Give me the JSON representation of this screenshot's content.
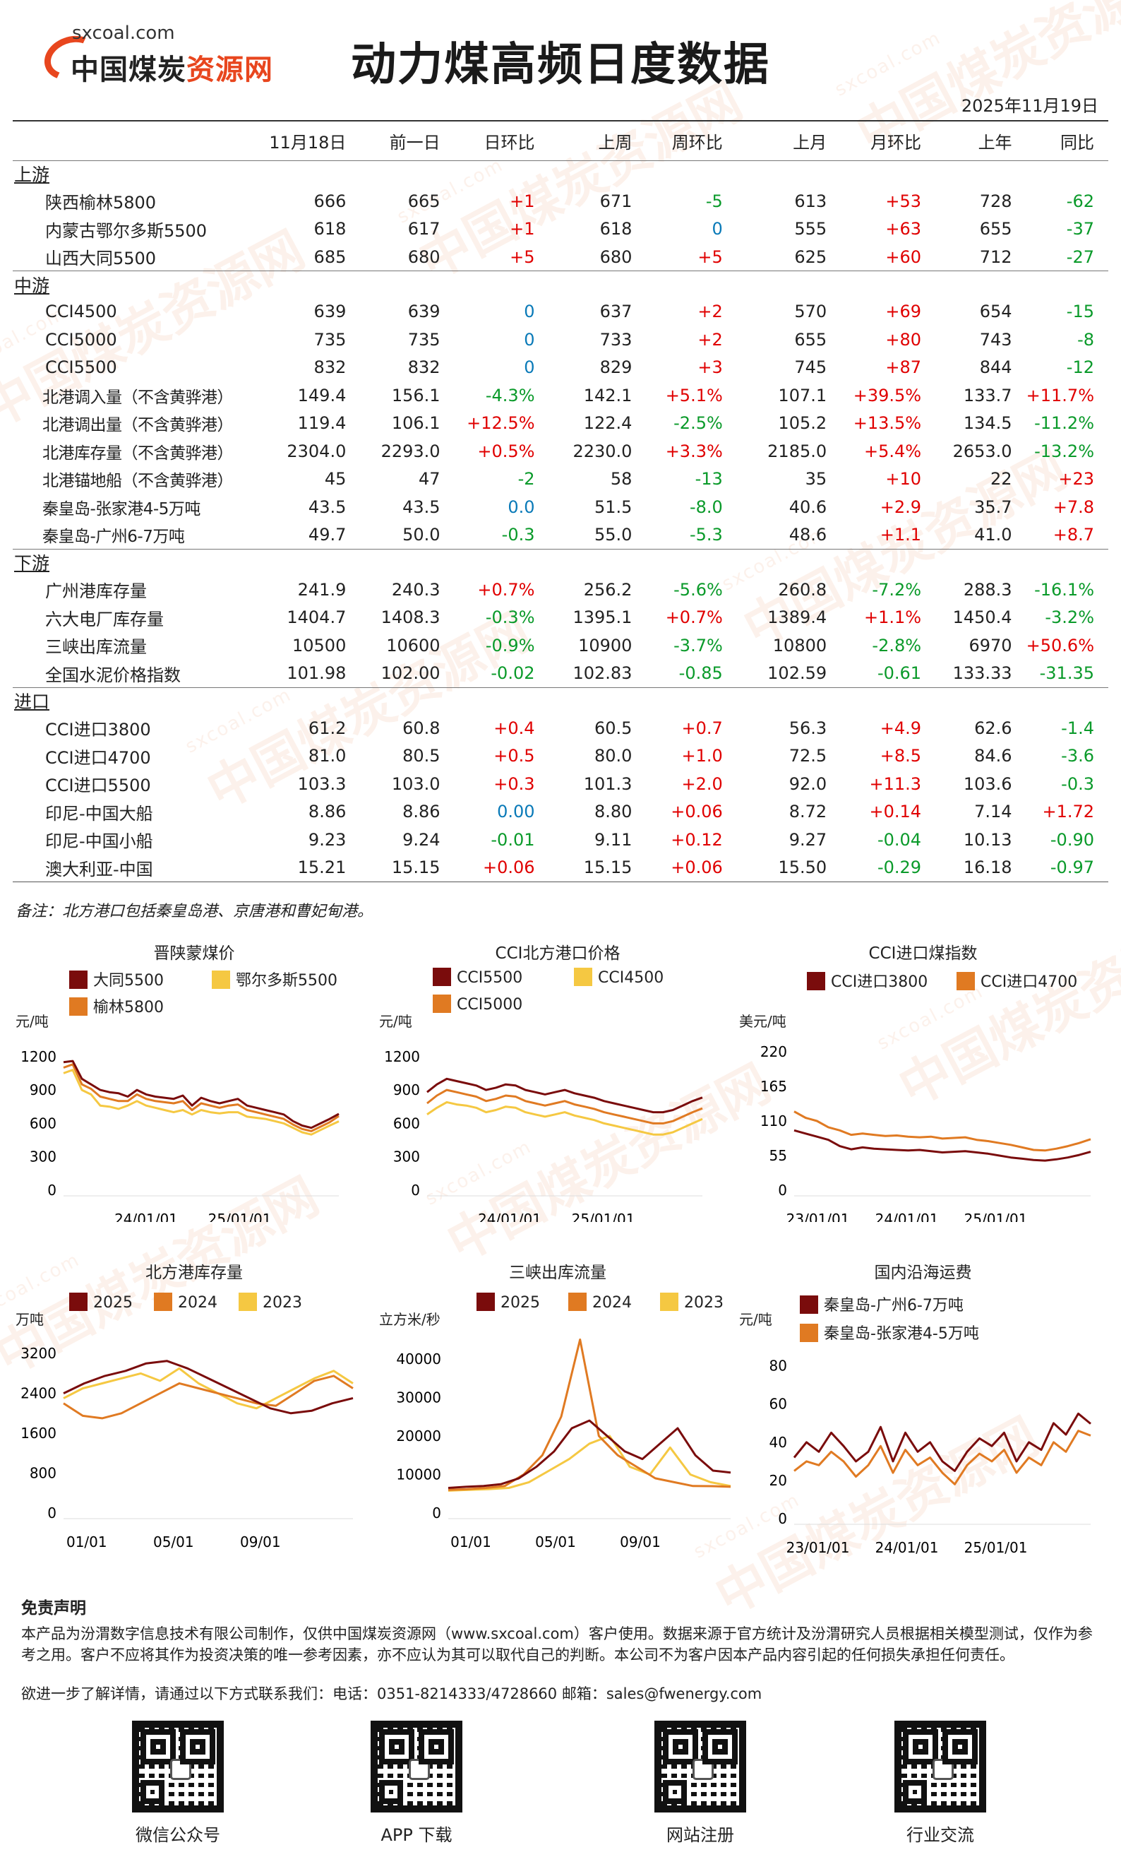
{
  "logo": {
    "domain": "sxcoal.com",
    "name_a": "中国煤炭",
    "name_b": "资源网"
  },
  "watermark": {
    "text": "中国煤炭资源网",
    "small": "sxcoal.com"
  },
  "title": "动力煤高频日度数据",
  "date": "2025年11月19日",
  "table": {
    "headers": [
      "",
      "11月18日",
      "前一日",
      "日环比",
      "上周",
      "周环比",
      "上月",
      "月环比",
      "上年",
      "同比"
    ],
    "sections": [
      {
        "name": "上游",
        "rows": [
          [
            "陕西榆林5800",
            "666",
            "665",
            "+1",
            "671",
            "-5",
            "613",
            "+53",
            "728",
            "-62"
          ],
          [
            "内蒙古鄂尔多斯5500",
            "618",
            "617",
            "+1",
            "618",
            "0",
            "555",
            "+63",
            "655",
            "-37"
          ],
          [
            "山西大同5500",
            "685",
            "680",
            "+5",
            "680",
            "+5",
            "625",
            "+60",
            "712",
            "-27"
          ]
        ]
      },
      {
        "name": "中游",
        "rows": [
          [
            "CCI4500",
            "639",
            "639",
            "0",
            "637",
            "+2",
            "570",
            "+69",
            "654",
            "-15"
          ],
          [
            "CCI5000",
            "735",
            "735",
            "0",
            "733",
            "+2",
            "655",
            "+80",
            "743",
            "-8"
          ],
          [
            "CCI5500",
            "832",
            "832",
            "0",
            "829",
            "+3",
            "745",
            "+87",
            "844",
            "-12"
          ],
          [
            "北港调入量（不含黄骅港）",
            "149.4",
            "156.1",
            "-4.3%",
            "142.1",
            "+5.1%",
            "107.1",
            "+39.5%",
            "133.7",
            "+11.7%"
          ],
          [
            "北港调出量（不含黄骅港）",
            "119.4",
            "106.1",
            "+12.5%",
            "122.4",
            "-2.5%",
            "105.2",
            "+13.5%",
            "134.5",
            "-11.2%"
          ],
          [
            "北港库存量（不含黄骅港）",
            "2304.0",
            "2293.0",
            "+0.5%",
            "2230.0",
            "+3.3%",
            "2185.0",
            "+5.4%",
            "2653.0",
            "-13.2%"
          ],
          [
            "北港锚地船（不含黄骅港）",
            "45",
            "47",
            "-2",
            "58",
            "-13",
            "35",
            "+10",
            "22",
            "+23"
          ],
          [
            "秦皇岛-张家港4-5万吨",
            "43.5",
            "43.5",
            "0.0",
            "51.5",
            "-8.0",
            "40.6",
            "+2.9",
            "35.7",
            "+7.8"
          ],
          [
            "秦皇岛-广州6-7万吨",
            "49.7",
            "50.0",
            "-0.3",
            "55.0",
            "-5.3",
            "48.6",
            "+1.1",
            "41.0",
            "+8.7"
          ]
        ]
      },
      {
        "name": "下游",
        "rows": [
          [
            "广州港库存量",
            "241.9",
            "240.3",
            "+0.7%",
            "256.2",
            "-5.6%",
            "260.8",
            "-7.2%",
            "288.3",
            "-16.1%"
          ],
          [
            "六大电厂库存量",
            "1404.7",
            "1408.3",
            "-0.3%",
            "1395.1",
            "+0.7%",
            "1389.4",
            "+1.1%",
            "1450.4",
            "-3.2%"
          ],
          [
            "三峡出库流量",
            "10500",
            "10600",
            "-0.9%",
            "10900",
            "-3.7%",
            "10800",
            "-2.8%",
            "6970",
            "+50.6%"
          ],
          [
            "全国水泥价格指数",
            "101.98",
            "102.00",
            "-0.02",
            "102.83",
            "-0.85",
            "102.59",
            "-0.61",
            "133.33",
            "-31.35"
          ]
        ]
      },
      {
        "name": "进口",
        "rows": [
          [
            "CCI进口3800",
            "61.2",
            "60.8",
            "+0.4",
            "60.5",
            "+0.7",
            "56.3",
            "+4.9",
            "62.6",
            "-1.4"
          ],
          [
            "CCI进口4700",
            "81.0",
            "80.5",
            "+0.5",
            "80.0",
            "+1.0",
            "72.5",
            "+8.5",
            "84.6",
            "-3.6"
          ],
          [
            "CCI进口5500",
            "103.3",
            "103.0",
            "+0.3",
            "101.3",
            "+2.0",
            "92.0",
            "+11.3",
            "103.6",
            "-0.3"
          ],
          [
            "印尼-中国大船",
            "8.86",
            "8.86",
            "0.00",
            "8.80",
            "+0.06",
            "8.72",
            "+0.14",
            "7.14",
            "+1.72"
          ],
          [
            "印尼-中国小船",
            "9.23",
            "9.24",
            "-0.01",
            "9.11",
            "+0.12",
            "9.27",
            "-0.04",
            "10.13",
            "-0.90"
          ],
          [
            "澳大利亚-中国",
            "15.21",
            "15.15",
            "+0.06",
            "15.15",
            "+0.06",
            "15.50",
            "-0.29",
            "16.18",
            "-0.97"
          ]
        ]
      }
    ]
  },
  "note": "备注：北方港口包括秦皇岛港、京唐港和曹妃甸港。",
  "colors": {
    "dark": "#7a0c0c",
    "orange": "#e07a22",
    "yellow": "#f5c842"
  },
  "chart_data": [
    {
      "id": "c1",
      "type": "line",
      "title": "晋陕蒙煤价",
      "ylabel": "元/吨",
      "yticks": [
        0,
        300,
        600,
        900,
        1200
      ],
      "ylim": [
        0,
        1300
      ],
      "xticks": [
        "24/01/01",
        "25/01/01"
      ],
      "legend": [
        "大同5500",
        "鄂尔多斯5500",
        "榆林5800"
      ],
      "series": [
        {
          "name": "大同5500",
          "color": "dark",
          "values": [
            1150,
            1160,
            1000,
            950,
            900,
            880,
            870,
            840,
            900,
            860,
            840,
            830,
            820,
            850,
            760,
            830,
            800,
            780,
            800,
            820,
            760,
            740,
            720,
            700,
            680,
            620,
            580,
            560,
            600,
            640,
            685
          ]
        },
        {
          "name": "鄂尔多斯5500",
          "color": "yellow",
          "values": [
            1050,
            1080,
            900,
            860,
            760,
            750,
            730,
            760,
            800,
            760,
            740,
            720,
            700,
            720,
            680,
            720,
            700,
            690,
            700,
            700,
            660,
            650,
            640,
            620,
            600,
            560,
            520,
            500,
            540,
            580,
            618
          ]
        },
        {
          "name": "榆林5800",
          "color": "orange",
          "values": [
            1100,
            1130,
            950,
            910,
            840,
            820,
            800,
            800,
            860,
            820,
            800,
            790,
            780,
            800,
            720,
            780,
            760,
            740,
            760,
            770,
            720,
            700,
            680,
            660,
            640,
            590,
            550,
            530,
            570,
            610,
            666
          ]
        }
      ]
    },
    {
      "id": "c2",
      "type": "line",
      "title": "CCI北方港口价格",
      "ylabel": "元/吨",
      "yticks": [
        0,
        300,
        600,
        900,
        1200
      ],
      "ylim": [
        0,
        1300
      ],
      "xticks": [
        "24/01/01",
        "25/01/01"
      ],
      "legend": [
        "CCI5500",
        "CCI4500",
        "CCI5000"
      ],
      "series": [
        {
          "name": "CCI5500",
          "color": "dark",
          "values": [
            880,
            950,
            1000,
            980,
            960,
            940,
            900,
            920,
            950,
            940,
            900,
            880,
            860,
            880,
            900,
            870,
            850,
            830,
            800,
            780,
            760,
            740,
            720,
            700,
            700,
            720,
            760,
            800,
            832
          ]
        },
        {
          "name": "CCI4500",
          "color": "yellow",
          "values": [
            680,
            740,
            790,
            770,
            760,
            740,
            700,
            720,
            750,
            740,
            700,
            680,
            660,
            680,
            700,
            670,
            650,
            630,
            600,
            580,
            560,
            540,
            520,
            500,
            500,
            520,
            560,
            600,
            639
          ]
        },
        {
          "name": "CCI5000",
          "color": "orange",
          "values": [
            780,
            850,
            900,
            880,
            860,
            840,
            800,
            820,
            850,
            840,
            800,
            780,
            760,
            780,
            800,
            770,
            750,
            730,
            700,
            680,
            660,
            640,
            620,
            600,
            600,
            620,
            660,
            700,
            735
          ]
        }
      ]
    },
    {
      "id": "c3",
      "type": "line",
      "title": "CCI进口煤指数",
      "ylabel": "美元/吨",
      "yticks": [
        0,
        55,
        110,
        165,
        220
      ],
      "ylim": [
        0,
        230
      ],
      "xticks": [
        "23/01/01",
        "24/01/01",
        "25/01/01"
      ],
      "legend": [
        "CCI进口3800",
        "CCI进口4700"
      ],
      "series": [
        {
          "name": "CCI进口3800",
          "color": "dark",
          "values": [
            95,
            90,
            85,
            80,
            70,
            65,
            68,
            66,
            65,
            64,
            63,
            64,
            62,
            60,
            61,
            62,
            60,
            58,
            55,
            52,
            50,
            48,
            47,
            49,
            52,
            56,
            61
          ]
        },
        {
          "name": "CCI进口4700",
          "color": "orange",
          "values": [
            125,
            115,
            110,
            100,
            95,
            88,
            90,
            88,
            86,
            87,
            85,
            84,
            85,
            82,
            83,
            84,
            80,
            78,
            75,
            72,
            68,
            64,
            63,
            66,
            70,
            75,
            81
          ]
        }
      ]
    },
    {
      "id": "c4",
      "type": "line",
      "title": "北方港库存量",
      "ylabel": "万吨",
      "yticks": [
        0,
        800,
        1600,
        2400,
        3200
      ],
      "ylim": [
        0,
        3400
      ],
      "xticks": [
        "01/01",
        "05/01",
        "09/01"
      ],
      "legend": [
        "2025",
        "2024",
        "2023"
      ],
      "series": [
        {
          "name": "2025",
          "color": "dark",
          "values": [
            2400,
            2600,
            2750,
            2850,
            3000,
            3050,
            2900,
            2700,
            2500,
            2300,
            2100,
            2000,
            2050,
            2200,
            2304
          ]
        },
        {
          "name": "2024",
          "color": "orange",
          "values": [
            2200,
            1950,
            1900,
            2000,
            2200,
            2400,
            2600,
            2500,
            2400,
            2300,
            2200,
            2150,
            2400,
            2650,
            2750,
            2500
          ]
        },
        {
          "name": "2023",
          "color": "yellow",
          "values": [
            2300,
            2500,
            2600,
            2700,
            2800,
            2650,
            2900,
            2600,
            2400,
            2200,
            2100,
            2300,
            2500,
            2700,
            2850,
            2600
          ]
        }
      ]
    },
    {
      "id": "c5",
      "type": "line",
      "title": "三峡出库流量",
      "ylabel": "立方米/秒",
      "yticks": [
        0,
        10000,
        20000,
        30000,
        40000
      ],
      "ylim": [
        0,
        44000
      ],
      "xticks": [
        "01/01",
        "05/01",
        "09/01"
      ],
      "legend": [
        "2025",
        "2024",
        "2023"
      ],
      "series": [
        {
          "name": "2025",
          "color": "dark",
          "values": [
            6500,
            6800,
            7000,
            7500,
            9000,
            12000,
            16000,
            22000,
            24000,
            20000,
            16000,
            14000,
            18000,
            22000,
            15000,
            11000,
            10500
          ]
        },
        {
          "name": "2024",
          "color": "orange",
          "values": [
            6000,
            6200,
            6500,
            7000,
            10000,
            15000,
            25000,
            45000,
            20000,
            15000,
            12000,
            9000,
            8000,
            7000,
            6970,
            6800
          ]
        },
        {
          "name": "2023",
          "color": "yellow",
          "values": [
            5800,
            6000,
            6200,
            6500,
            8000,
            11000,
            14000,
            18000,
            20000,
            12000,
            10000,
            17000,
            10000,
            8000,
            7000
          ]
        }
      ]
    },
    {
      "id": "c6",
      "type": "line",
      "title": "国内沿海运费",
      "ylabel": "元/吨",
      "yticks": [
        0,
        20,
        40,
        60,
        80
      ],
      "ylim": [
        0,
        88
      ],
      "xticks": [
        "23/01/01",
        "24/01/01",
        "25/01/01"
      ],
      "legend": [
        "秦皇岛-广州6-7万吨",
        "秦皇岛-张家港4-5万吨"
      ],
      "series": [
        {
          "name": "秦皇岛-广州6-7万吨",
          "color": "dark",
          "values": [
            32,
            40,
            35,
            45,
            38,
            30,
            35,
            48,
            30,
            45,
            35,
            40,
            30,
            25,
            35,
            42,
            38,
            45,
            30,
            40,
            36,
            50,
            44,
            55,
            49.7
          ]
        },
        {
          "name": "秦皇岛-张家港4-5万吨",
          "color": "orange",
          "values": [
            25,
            30,
            28,
            35,
            30,
            22,
            28,
            38,
            24,
            36,
            28,
            32,
            24,
            18,
            28,
            34,
            30,
            36,
            24,
            32,
            28,
            40,
            35,
            46,
            43.5
          ]
        }
      ]
    }
  ],
  "disclaimer": {
    "title": "免责声明",
    "body": "本产品为汾渭数字信息技术有限公司制作，仅供中国煤炭资源网（www.sxcoal.com）客户使用。数据来源于官方统计及汾渭研究人员根据相关模型测试，仅作为参考之用。客户不应将其作为投资决策的唯一参考因素，亦不应认为其可以取代自己的判断。本公司不为客户因本产品内容引起的任何损失承担任何责任。",
    "contact": "欲进一步了解详情，请通过以下方式联系我们：电话：0351-8214333/4728660 邮箱：sales@fwenergy.com"
  },
  "qrcodes": [
    {
      "label": "微信公众号",
      "icon": "qr-code-icon"
    },
    {
      "label": "APP 下载",
      "icon": "qr-code-icon"
    },
    {
      "label": "网站注册",
      "icon": "qr-code-icon"
    },
    {
      "label": "行业交流",
      "icon": "qr-code-icon"
    }
  ]
}
